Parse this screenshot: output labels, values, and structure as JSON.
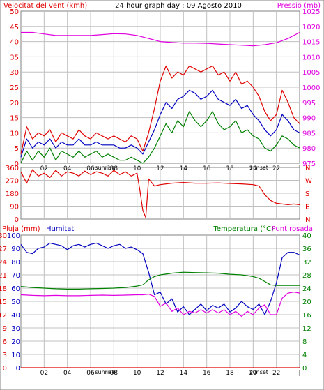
{
  "colors": {
    "background": "#ffffff",
    "grid": "#c0c0c0",
    "wind": "#e00000",
    "wind_avg": "#0000c0",
    "wind_min": "#008000",
    "pressure": "#e000e0",
    "direction": "#e00000",
    "humidity": "#0000c0",
    "temperature": "#008000",
    "dewpoint": "#e000e0",
    "rain": "#e00000"
  },
  "header": {
    "left_title": "Velocitat del vent (kmh)",
    "center_title": "24 hour graph day : 09 Agosto 2010",
    "right_title": "Pressió (mb)"
  },
  "bottom_header": {
    "rain_label": "Pluja (mm)",
    "humidity_label": "Humitat",
    "temperature_label": "Temperatura (°C)",
    "dewpoint_label": "Punt rosada"
  },
  "x_axis": {
    "ticks": [
      {
        "hour": 2,
        "label": "02"
      },
      {
        "hour": 4,
        "label": "04"
      },
      {
        "hour": 6,
        "label": "06"
      },
      {
        "hour": 8,
        "label": "08"
      },
      {
        "hour": 10,
        "label": "10"
      },
      {
        "hour": 12,
        "label": "12"
      },
      {
        "hour": 14,
        "label": "14"
      },
      {
        "hour": 16,
        "label": "16"
      },
      {
        "hour": 18,
        "label": "18"
      },
      {
        "hour": 20,
        "label": "20"
      },
      {
        "hour": 22,
        "label": "22"
      },
      {
        "hour": 24,
        "label": "|"
      }
    ],
    "sunrise_label": "sunrise",
    "sunset_label": "sunset",
    "sunrise_hour": 7.25,
    "sunset_hour": 20.5
  },
  "chart_data": [
    {
      "type": "line",
      "xlim": [
        0,
        24
      ],
      "ylim": [
        0,
        50
      ],
      "y_ticks": [
        "0",
        "5",
        "10",
        "15",
        "20",
        "25",
        "30",
        "35",
        "40",
        "45",
        "50"
      ],
      "y2lim": [
        975,
        1025
      ],
      "y2_ticks": [
        "975",
        "980",
        "985",
        "990",
        "995",
        "1000",
        "1005",
        "1010",
        "1015",
        "1020",
        "1025"
      ],
      "grid": true,
      "series": [
        {
          "key": "wind_max",
          "axis": "left",
          "color_key": "wind",
          "x": [
            0,
            0.5,
            1,
            1.5,
            2,
            2.5,
            3,
            3.5,
            4,
            4.5,
            5,
            5.5,
            6,
            6.5,
            7,
            7.5,
            8,
            8.5,
            9,
            9.5,
            10,
            10.5,
            11,
            11.5,
            12,
            12.5,
            13,
            13.5,
            14,
            14.5,
            15,
            15.5,
            16,
            16.5,
            17,
            17.5,
            18,
            18.5,
            19,
            19.5,
            20,
            20.5,
            21,
            21.5,
            22,
            22.5,
            23,
            23.5,
            24
          ],
          "values": [
            3,
            12,
            8,
            10,
            9,
            11,
            7,
            10,
            9,
            8,
            11,
            9,
            8,
            10,
            9,
            8,
            9,
            8,
            7,
            9,
            8,
            4,
            10,
            18,
            27,
            32,
            28,
            30,
            29,
            32,
            31,
            30,
            31,
            32,
            29,
            30,
            27,
            30,
            26,
            27,
            25,
            22,
            17,
            14,
            16,
            24,
            20,
            15,
            13
          ]
        },
        {
          "key": "wind_avg",
          "axis": "left",
          "color_key": "wind_avg",
          "x": [
            0,
            0.5,
            1,
            1.5,
            2,
            2.5,
            3,
            3.5,
            4,
            4.5,
            5,
            5.5,
            6,
            6.5,
            7,
            7.5,
            8,
            8.5,
            9,
            9.5,
            10,
            10.5,
            11,
            11.5,
            12,
            12.5,
            13,
            13.5,
            14,
            14.5,
            15,
            15.5,
            16,
            16.5,
            17,
            17.5,
            18,
            18.5,
            19,
            19.5,
            20,
            20.5,
            21,
            21.5,
            22,
            22.5,
            23,
            23.5,
            24
          ],
          "values": [
            2,
            8,
            5,
            7,
            6,
            8,
            5,
            7,
            6,
            6,
            8,
            6,
            6,
            7,
            6,
            6,
            6,
            5,
            5,
            6,
            5,
            3,
            7,
            11,
            16,
            20,
            18,
            21,
            22,
            24,
            23,
            21,
            22,
            24,
            21,
            20,
            19,
            21,
            18,
            19,
            16,
            14,
            11,
            9,
            11,
            16,
            14,
            11,
            10
          ]
        },
        {
          "key": "wind_min",
          "axis": "left",
          "color_key": "wind_min",
          "x": [
            0,
            0.5,
            1,
            1.5,
            2,
            2.5,
            3,
            3.5,
            4,
            4.5,
            5,
            5.5,
            6,
            6.5,
            7,
            7.5,
            8,
            8.5,
            9,
            9.5,
            10,
            10.5,
            11,
            11.5,
            12,
            12.5,
            13,
            13.5,
            14,
            14.5,
            15,
            15.5,
            16,
            16.5,
            17,
            17.5,
            18,
            18.5,
            19,
            19.5,
            20,
            20.5,
            21,
            21.5,
            22,
            22.5,
            23,
            23.5,
            24
          ],
          "values": [
            0,
            4,
            1,
            4,
            2,
            5,
            1,
            4,
            3,
            2,
            4,
            2,
            3,
            4,
            2,
            3,
            2,
            1,
            1,
            2,
            1,
            0,
            2,
            5,
            9,
            13,
            10,
            14,
            12,
            17,
            14,
            12,
            14,
            17,
            13,
            11,
            12,
            14,
            10,
            11,
            9,
            8,
            5,
            4,
            6,
            9,
            8,
            6,
            5
          ]
        },
        {
          "key": "pressure",
          "axis": "right",
          "color_key": "pressure",
          "x": [
            0,
            1,
            2,
            3,
            4,
            5,
            6,
            7,
            8,
            9,
            10,
            11,
            12,
            13,
            14,
            15,
            16,
            17,
            18,
            19,
            20,
            21,
            22,
            23,
            24
          ],
          "values": [
            1018,
            1018,
            1017.5,
            1017,
            1017,
            1017,
            1017,
            1017.3,
            1017.6,
            1017.5,
            1017,
            1016,
            1015,
            1014.7,
            1014.5,
            1014.5,
            1014.4,
            1014.2,
            1014,
            1013.8,
            1013.6,
            1014,
            1014.6,
            1016,
            1018
          ]
        }
      ]
    },
    {
      "type": "line",
      "xlim": [
        0,
        24
      ],
      "ylim": [
        0,
        360
      ],
      "y_ticks": [
        "0",
        "90",
        "180",
        "270",
        "360"
      ],
      "y2_ticks": [
        "N",
        "E",
        "S",
        "W",
        "N"
      ],
      "grid": true,
      "series": [
        {
          "key": "direction",
          "axis": "left",
          "color_key": "direction",
          "x": [
            0,
            0.5,
            1,
            1.5,
            2,
            2.5,
            3,
            3.5,
            4,
            4.5,
            5,
            5.5,
            6,
            6.5,
            7,
            7.5,
            8,
            8.5,
            9,
            9.5,
            10,
            10.25,
            10.5,
            10.75,
            11,
            11.5,
            12,
            13,
            14,
            15,
            16,
            17,
            18,
            19,
            20,
            20.5,
            21,
            21.5,
            22,
            22.5,
            23,
            23.5,
            24
          ],
          "values": [
            330,
            250,
            345,
            300,
            320,
            290,
            340,
            300,
            330,
            320,
            300,
            335,
            310,
            330,
            320,
            300,
            340,
            310,
            330,
            300,
            320,
            200,
            60,
            10,
            280,
            230,
            240,
            250,
            255,
            250,
            250,
            252,
            248,
            245,
            240,
            230,
            170,
            130,
            110,
            105,
            100,
            105,
            100
          ]
        }
      ]
    },
    {
      "type": "line",
      "xlim": [
        0,
        24
      ],
      "ylim": [
        0,
        100
      ],
      "y_ticks": [
        "0",
        "10",
        "20",
        "30",
        "40",
        "50",
        "60",
        "70",
        "80",
        "90",
        "100"
      ],
      "rain_ticks": [
        "0",
        "3",
        "6",
        "9",
        "12",
        "15",
        "18",
        "21",
        "24",
        "27",
        "30"
      ],
      "y2lim": [
        0,
        40
      ],
      "y2_ticks": [
        "0",
        "4",
        "8",
        "12",
        "16",
        "20",
        "24",
        "28",
        "32",
        "36",
        "40"
      ],
      "grid": true,
      "series": [
        {
          "key": "humidity",
          "axis": "left",
          "color_key": "humidity",
          "x": [
            0,
            0.5,
            1,
            1.5,
            2,
            2.5,
            3,
            3.5,
            4,
            4.5,
            5,
            5.5,
            6,
            6.5,
            7,
            7.5,
            8,
            8.5,
            9,
            9.5,
            10,
            10.5,
            11,
            11.5,
            12,
            12.5,
            13,
            13.5,
            14,
            14.5,
            15,
            15.5,
            16,
            16.5,
            17,
            17.5,
            18,
            18.5,
            19,
            19.5,
            20,
            20.5,
            21,
            21.5,
            22,
            22.5,
            23,
            23.5,
            24
          ],
          "values": [
            93,
            87,
            86,
            90,
            91,
            94,
            93,
            92,
            89,
            92,
            93,
            91,
            93,
            94,
            92,
            90,
            92,
            93,
            90,
            91,
            89,
            86,
            72,
            55,
            57,
            48,
            52,
            42,
            46,
            40,
            44,
            48,
            43,
            47,
            45,
            48,
            42,
            45,
            50,
            46,
            44,
            48,
            40,
            50,
            64,
            83,
            87,
            87,
            85
          ]
        },
        {
          "key": "temperature",
          "axis": "right",
          "color_key": "temperature",
          "x": [
            0,
            1,
            2,
            3,
            4,
            5,
            6,
            7,
            8,
            9,
            10,
            10.5,
            11,
            11.5,
            12,
            13,
            14,
            15,
            16,
            17,
            18,
            19,
            20,
            20.5,
            21,
            21.5,
            22,
            23,
            24
          ],
          "values": [
            24.5,
            24.2,
            24,
            23.8,
            23.7,
            23.7,
            23.8,
            23.9,
            24,
            24.2,
            24.6,
            25,
            26.5,
            27.5,
            28,
            28.5,
            28.8,
            28.7,
            28.6,
            28.5,
            28.2,
            28,
            27.5,
            27,
            26,
            25,
            24.8,
            24.8,
            24.8
          ]
        },
        {
          "key": "dewpoint",
          "axis": "right",
          "color_key": "dewpoint",
          "x": [
            0,
            1,
            2,
            3,
            4,
            5,
            6,
            7,
            8,
            9,
            10,
            10.5,
            11,
            11.5,
            12,
            12.5,
            13,
            13.5,
            14,
            14.5,
            15,
            15.5,
            16,
            16.5,
            17,
            17.5,
            18,
            18.5,
            19,
            19.5,
            20,
            20.5,
            21,
            21.5,
            22,
            22.5,
            23,
            23.5,
            24
          ],
          "values": [
            22,
            21.8,
            21.7,
            21.8,
            21.7,
            21.7,
            21.8,
            21.9,
            21.8,
            21.9,
            22,
            22,
            22.2,
            21.5,
            18.5,
            19.5,
            17,
            18,
            16,
            17,
            16.5,
            17.5,
            16.5,
            17.5,
            16.5,
            17.5,
            16,
            17,
            15.5,
            17,
            16,
            18,
            19,
            16,
            16,
            21,
            22.5,
            22.8,
            22.5
          ]
        },
        {
          "key": "rain",
          "axis": "rain",
          "color_key": "rain",
          "x": [
            0,
            24
          ],
          "values": [
            0,
            0
          ]
        }
      ]
    }
  ]
}
